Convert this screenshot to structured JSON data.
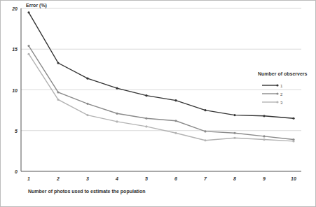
{
  "chart_data": {
    "type": "line",
    "y_label": "Error (%)",
    "x_label": "Number of photos used to estimate the population",
    "legend_title": "Number of observers",
    "categories": [
      "1",
      "2",
      "3",
      "4",
      "5",
      "6",
      "7",
      "8",
      "9",
      "10"
    ],
    "series": [
      {
        "name": "1",
        "color": "#333333",
        "values": [
          19.5,
          13.3,
          11.4,
          10.2,
          9.3,
          8.7,
          7.5,
          6.9,
          6.8,
          6.5
        ]
      },
      {
        "name": "2",
        "color": "#8a8a8a",
        "values": [
          15.4,
          9.7,
          8.3,
          7.1,
          6.5,
          6.2,
          4.9,
          4.7,
          4.3,
          3.9
        ]
      },
      {
        "name": "3",
        "color": "#b3b3b3",
        "values": [
          14.4,
          8.8,
          6.9,
          6.1,
          5.5,
          4.7,
          3.8,
          4.1,
          3.9,
          3.7
        ]
      }
    ],
    "ylim": [
      0,
      20
    ],
    "yticks": [
      0,
      5,
      10,
      15,
      20
    ],
    "grid": true,
    "legend": "right",
    "marker": "circle"
  }
}
